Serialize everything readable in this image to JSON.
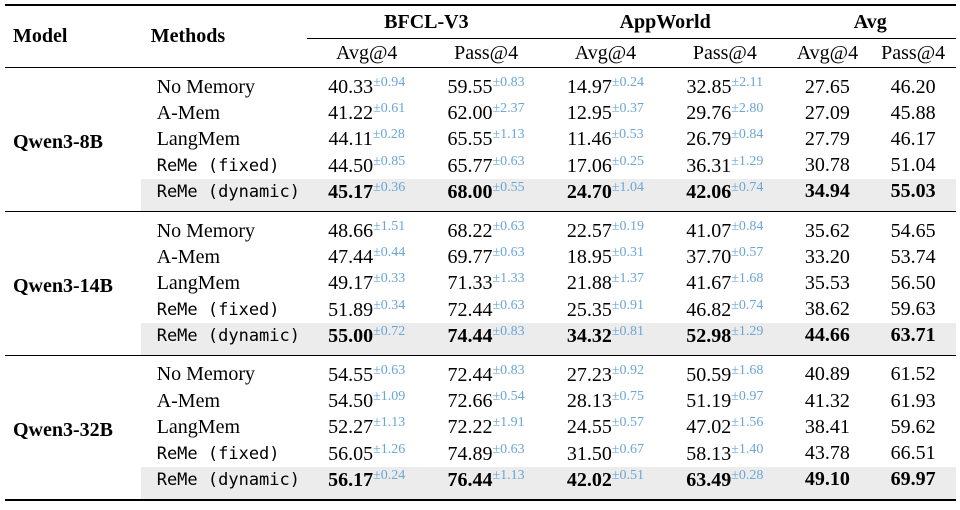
{
  "headers": {
    "model": "Model",
    "methods": "Methods",
    "groups": [
      "BFCL-V3",
      "AppWorld",
      "Avg"
    ],
    "metrics": [
      "Avg@4",
      "Pass@4",
      "Avg@4",
      "Pass@4",
      "Avg@4",
      "Pass@4"
    ]
  },
  "groups": [
    {
      "model": "Qwen3-8B",
      "rows": [
        {
          "method": "No Memory",
          "mono": false,
          "bfcl_avg": "40.33",
          "bfcl_avg_sd": "±0.94",
          "bfcl_pass": "59.55",
          "bfcl_pass_sd": "±0.83",
          "aw_avg": "14.97",
          "aw_avg_sd": "±0.24",
          "aw_pass": "32.85",
          "aw_pass_sd": "±2.11",
          "avg_avg": "27.65",
          "avg_pass": "46.20"
        },
        {
          "method": "A-Mem",
          "mono": false,
          "bfcl_avg": "41.22",
          "bfcl_avg_sd": "±0.61",
          "bfcl_pass": "62.00",
          "bfcl_pass_sd": "±2.37",
          "aw_avg": "12.95",
          "aw_avg_sd": "±0.37",
          "aw_pass": "29.76",
          "aw_pass_sd": "±2.80",
          "avg_avg": "27.09",
          "avg_pass": "45.88"
        },
        {
          "method": "LangMem",
          "mono": false,
          "bfcl_avg": "44.11",
          "bfcl_avg_sd": "±0.28",
          "bfcl_pass": "65.55",
          "bfcl_pass_sd": "±1.13",
          "aw_avg": "11.46",
          "aw_avg_sd": "±0.53",
          "aw_pass": "26.79",
          "aw_pass_sd": "±0.84",
          "avg_avg": "27.79",
          "avg_pass": "46.17"
        },
        {
          "method": "ReMe (fixed)",
          "mono": true,
          "bfcl_avg": "44.50",
          "bfcl_avg_sd": "±0.85",
          "bfcl_pass": "65.77",
          "bfcl_pass_sd": "±0.63",
          "aw_avg": "17.06",
          "aw_avg_sd": "±0.25",
          "aw_pass": "36.31",
          "aw_pass_sd": "±1.29",
          "avg_avg": "30.78",
          "avg_pass": "51.04"
        },
        {
          "method": "ReMe (dynamic)",
          "mono": true,
          "highlight": true,
          "bfcl_avg": "45.17",
          "bfcl_avg_sd": "±0.36",
          "bfcl_pass": "68.00",
          "bfcl_pass_sd": "±0.55",
          "aw_avg": "24.70",
          "aw_avg_sd": "±1.04",
          "aw_pass": "42.06",
          "aw_pass_sd": "±0.74",
          "avg_avg": "34.94",
          "avg_pass": "55.03"
        }
      ]
    },
    {
      "model": "Qwen3-14B",
      "rows": [
        {
          "method": "No Memory",
          "mono": false,
          "bfcl_avg": "48.66",
          "bfcl_avg_sd": "±1.51",
          "bfcl_pass": "68.22",
          "bfcl_pass_sd": "±0.63",
          "aw_avg": "22.57",
          "aw_avg_sd": "±0.19",
          "aw_pass": "41.07",
          "aw_pass_sd": "±0.84",
          "avg_avg": "35.62",
          "avg_pass": "54.65"
        },
        {
          "method": "A-Mem",
          "mono": false,
          "bfcl_avg": "47.44",
          "bfcl_avg_sd": "±0.44",
          "bfcl_pass": "69.77",
          "bfcl_pass_sd": "±0.63",
          "aw_avg": "18.95",
          "aw_avg_sd": "±0.31",
          "aw_pass": "37.70",
          "aw_pass_sd": "±0.57",
          "avg_avg": "33.20",
          "avg_pass": "53.74"
        },
        {
          "method": "LangMem",
          "mono": false,
          "bfcl_avg": "49.17",
          "bfcl_avg_sd": "±0.33",
          "bfcl_pass": "71.33",
          "bfcl_pass_sd": "±1.33",
          "aw_avg": "21.88",
          "aw_avg_sd": "±1.37",
          "aw_pass": "41.67",
          "aw_pass_sd": "±1.68",
          "avg_avg": "35.53",
          "avg_pass": "56.50"
        },
        {
          "method": "ReMe (fixed)",
          "mono": true,
          "bfcl_avg": "51.89",
          "bfcl_avg_sd": "±0.34",
          "bfcl_pass": "72.44",
          "bfcl_pass_sd": "±0.63",
          "aw_avg": "25.35",
          "aw_avg_sd": "±0.91",
          "aw_pass": "46.82",
          "aw_pass_sd": "±0.74",
          "avg_avg": "38.62",
          "avg_pass": "59.63"
        },
        {
          "method": "ReMe (dynamic)",
          "mono": true,
          "highlight": true,
          "bfcl_avg": "55.00",
          "bfcl_avg_sd": "±0.72",
          "bfcl_pass": "74.44",
          "bfcl_pass_sd": "±0.83",
          "aw_avg": "34.32",
          "aw_avg_sd": "±0.81",
          "aw_pass": "52.98",
          "aw_pass_sd": "±1.29",
          "avg_avg": "44.66",
          "avg_pass": "63.71"
        }
      ]
    },
    {
      "model": "Qwen3-32B",
      "rows": [
        {
          "method": "No Memory",
          "mono": false,
          "bfcl_avg": "54.55",
          "bfcl_avg_sd": "±0.63",
          "bfcl_pass": "72.44",
          "bfcl_pass_sd": "±0.83",
          "aw_avg": "27.23",
          "aw_avg_sd": "±0.92",
          "aw_pass": "50.59",
          "aw_pass_sd": "±1.68",
          "avg_avg": "40.89",
          "avg_pass": "61.52"
        },
        {
          "method": "A-Mem",
          "mono": false,
          "bfcl_avg": "54.50",
          "bfcl_avg_sd": "±1.09",
          "bfcl_pass": "72.66",
          "bfcl_pass_sd": "±0.54",
          "aw_avg": "28.13",
          "aw_avg_sd": "±0.75",
          "aw_pass": "51.19",
          "aw_pass_sd": "±0.97",
          "avg_avg": "41.32",
          "avg_pass": "61.93"
        },
        {
          "method": "LangMem",
          "mono": false,
          "bfcl_avg": "52.27",
          "bfcl_avg_sd": "±1.13",
          "bfcl_pass": "72.22",
          "bfcl_pass_sd": "±1.91",
          "aw_avg": "24.55",
          "aw_avg_sd": "±0.57",
          "aw_pass": "47.02",
          "aw_pass_sd": "±1.56",
          "avg_avg": "38.41",
          "avg_pass": "59.62"
        },
        {
          "method": "ReMe (fixed)",
          "mono": true,
          "bfcl_avg": "56.05",
          "bfcl_avg_sd": "±1.26",
          "bfcl_pass": "74.89",
          "bfcl_pass_sd": "±0.63",
          "aw_avg": "31.50",
          "aw_avg_sd": "±0.67",
          "aw_pass": "58.13",
          "aw_pass_sd": "±1.40",
          "avg_avg": "43.78",
          "avg_pass": "66.51"
        },
        {
          "method": "ReMe (dynamic)",
          "mono": true,
          "highlight": true,
          "bfcl_avg": "56.17",
          "bfcl_avg_sd": "±0.24",
          "bfcl_pass": "76.44",
          "bfcl_pass_sd": "±1.13",
          "aw_avg": "42.02",
          "aw_avg_sd": "±0.51",
          "aw_pass": "63.49",
          "aw_pass_sd": "±0.28",
          "avg_avg": "49.10",
          "avg_pass": "69.97"
        }
      ]
    }
  ],
  "colors": {
    "std_text": "#6aa6d6",
    "highlight_row": "#ececec"
  }
}
